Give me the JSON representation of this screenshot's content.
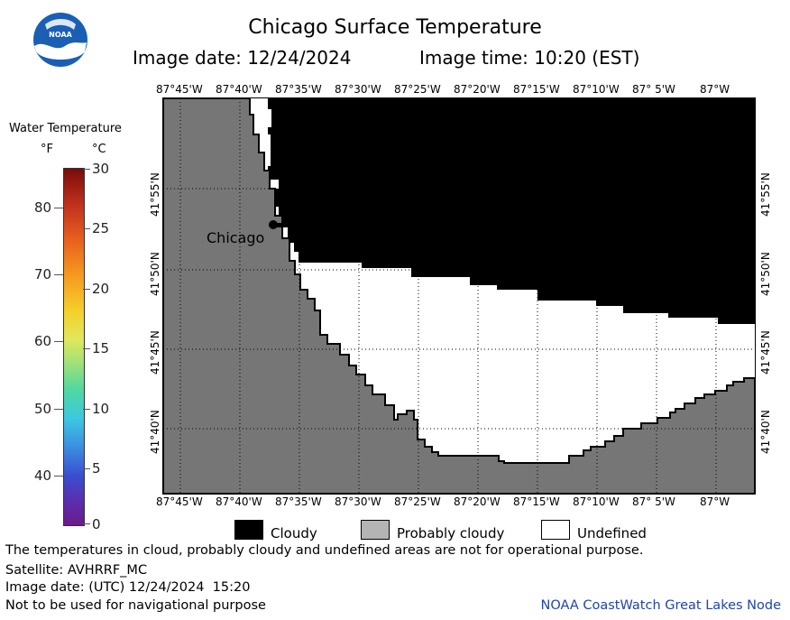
{
  "header": {
    "title": "Chicago Surface Temperature",
    "image_date": "Image date: 12/24/2024",
    "image_time": "Image time: 10:20 (EST)"
  },
  "logo": {
    "text": "NOAA"
  },
  "scale": {
    "title": "Water Temperature",
    "unit_f": "°F",
    "unit_c": "°C",
    "f_ticks": [
      "80",
      "70",
      "60",
      "50",
      "40"
    ],
    "c_ticks": [
      "30",
      "25",
      "20",
      "15",
      "10",
      "5",
      "0"
    ]
  },
  "map": {
    "lon_labels": [
      "87°45'W",
      "87°40'W",
      "87°35'W",
      "87°30'W",
      "87°25'W",
      "87°20'W",
      "87°15'W",
      "87°10'W",
      "87° 5'W",
      "87°W"
    ],
    "lat_labels": [
      "41°55'N",
      "41°50'N",
      "41°45'N",
      "41°40'N"
    ],
    "city_label": "Chicago",
    "colors": {
      "land": "#767676",
      "cloudy": "#000000",
      "undefined": "#ffffff"
    }
  },
  "legend": {
    "cloudy": "Cloudy",
    "probably_cloudy": "Probably cloudy",
    "undefined": "Undefined"
  },
  "footer": {
    "note": "The temperatures in cloud, probably cloudy and undefined areas are not for operational purpose.",
    "satellite": "Satellite: AVHRRF_MC",
    "utc_date": "Image date: (UTC) 12/24/2024  15:20",
    "navigation": "Not to be used for navigational purpose",
    "credit": "NOAA CoastWatch Great Lakes Node"
  }
}
